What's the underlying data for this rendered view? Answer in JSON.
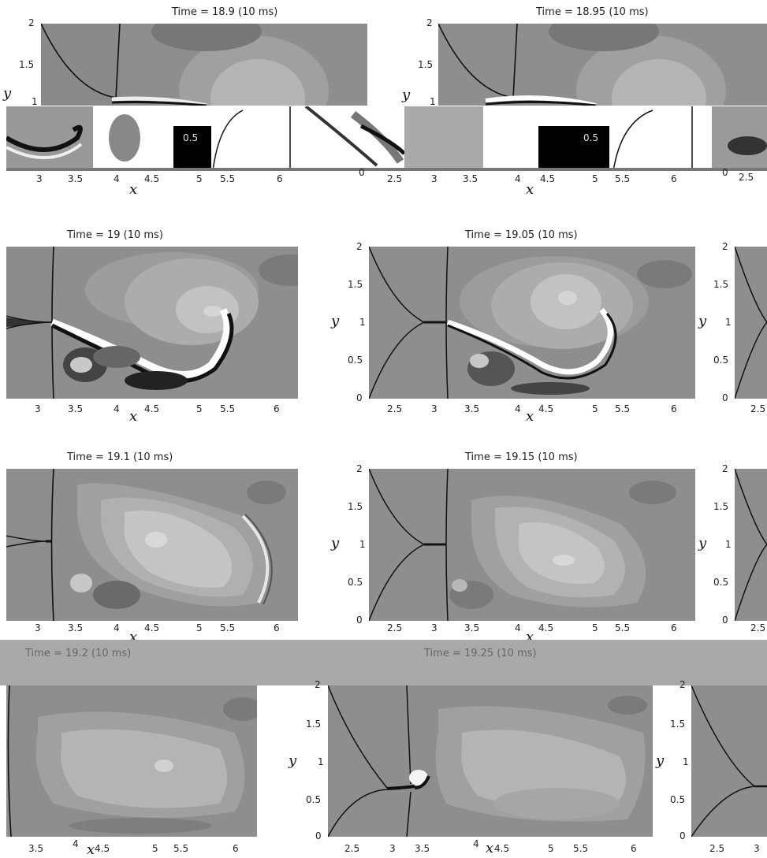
{
  "chart_data": [
    {
      "type": "heatmap",
      "title": "Time = 18.9 (10 ms)",
      "xlabel": "x",
      "ylabel": "y",
      "x_ticks": [
        "3",
        "3.5",
        "4",
        "4.5",
        "5",
        "5.5",
        "6"
      ],
      "y_ticks": [
        "1",
        "1.5",
        "2"
      ]
    },
    {
      "type": "heatmap",
      "title": "Time = 18.95 (10 ms)",
      "xlabel": "x",
      "ylabel": "y",
      "x_ticks": [
        "2.5",
        "3",
        "3.5",
        "4",
        "4.5",
        "5",
        "5.5",
        "6"
      ],
      "y_ticks": [
        "1",
        "1.5",
        "2"
      ]
    },
    {
      "type": "heatmap",
      "title": "Time = 19 (10 ms)",
      "xlabel": "x",
      "ylabel": "",
      "x_ticks": [
        "3",
        "3.5",
        "4",
        "4.5",
        "5",
        "5.5",
        "6"
      ],
      "y_ticks": []
    },
    {
      "type": "heatmap",
      "title": "Time = 19.05 (10 ms)",
      "xlabel": "x",
      "ylabel": "y",
      "x_ticks": [
        "2.5",
        "3",
        "3.5",
        "4",
        "4.5",
        "5",
        "5.5",
        "6"
      ],
      "y_ticks": [
        "0",
        "0.5",
        "1",
        "1.5",
        "2"
      ]
    },
    {
      "type": "heatmap",
      "title": "Time = 19.1 (10 ms)",
      "xlabel": "x",
      "ylabel": "",
      "x_ticks": [
        "3",
        "3.5",
        "4",
        "4.5",
        "5",
        "5.5",
        "6"
      ],
      "y_ticks": []
    },
    {
      "type": "heatmap",
      "title": "Time = 19.15 (10 ms)",
      "xlabel": "x",
      "ylabel": "y",
      "x_ticks": [
        "2.5",
        "3",
        "3.5",
        "4",
        "4.5",
        "5",
        "5.5",
        "6"
      ],
      "y_ticks": [
        "0",
        "0.5",
        "1",
        "1.5",
        "2"
      ]
    },
    {
      "type": "heatmap",
      "title": "Time = 19.2 (10 ms)",
      "xlabel": "x",
      "ylabel": "",
      "x_ticks": [
        "3.5",
        "4",
        "4.5",
        "5",
        "5.5",
        "6"
      ],
      "y_ticks": []
    },
    {
      "type": "heatmap",
      "title": "Time = 19.25 (10 ms)",
      "xlabel": "x",
      "ylabel": "y",
      "x_ticks": [
        "2.5",
        "3",
        "3.5",
        "4",
        "4.5",
        "5",
        "5.5",
        "6"
      ],
      "y_ticks": [
        "0",
        "0.5",
        "1",
        "1.5",
        "2"
      ]
    }
  ],
  "right_edge": {
    "y_ticks": [
      "0",
      "0.5",
      "1",
      "1.5",
      "2"
    ],
    "x_ticks": [
      "2.5",
      "3"
    ],
    "ylabel": "y"
  },
  "fragment_labels": {
    "a": "0.5",
    "b": "0.5",
    "c": "0",
    "d": "0",
    "e": "2.5"
  },
  "colors": {
    "field": "#8e8e8e",
    "dark": "#5a5a5a",
    "light": "#b8b8b8",
    "lighter": "#d0d0d0",
    "band": "#a9a9a9"
  }
}
